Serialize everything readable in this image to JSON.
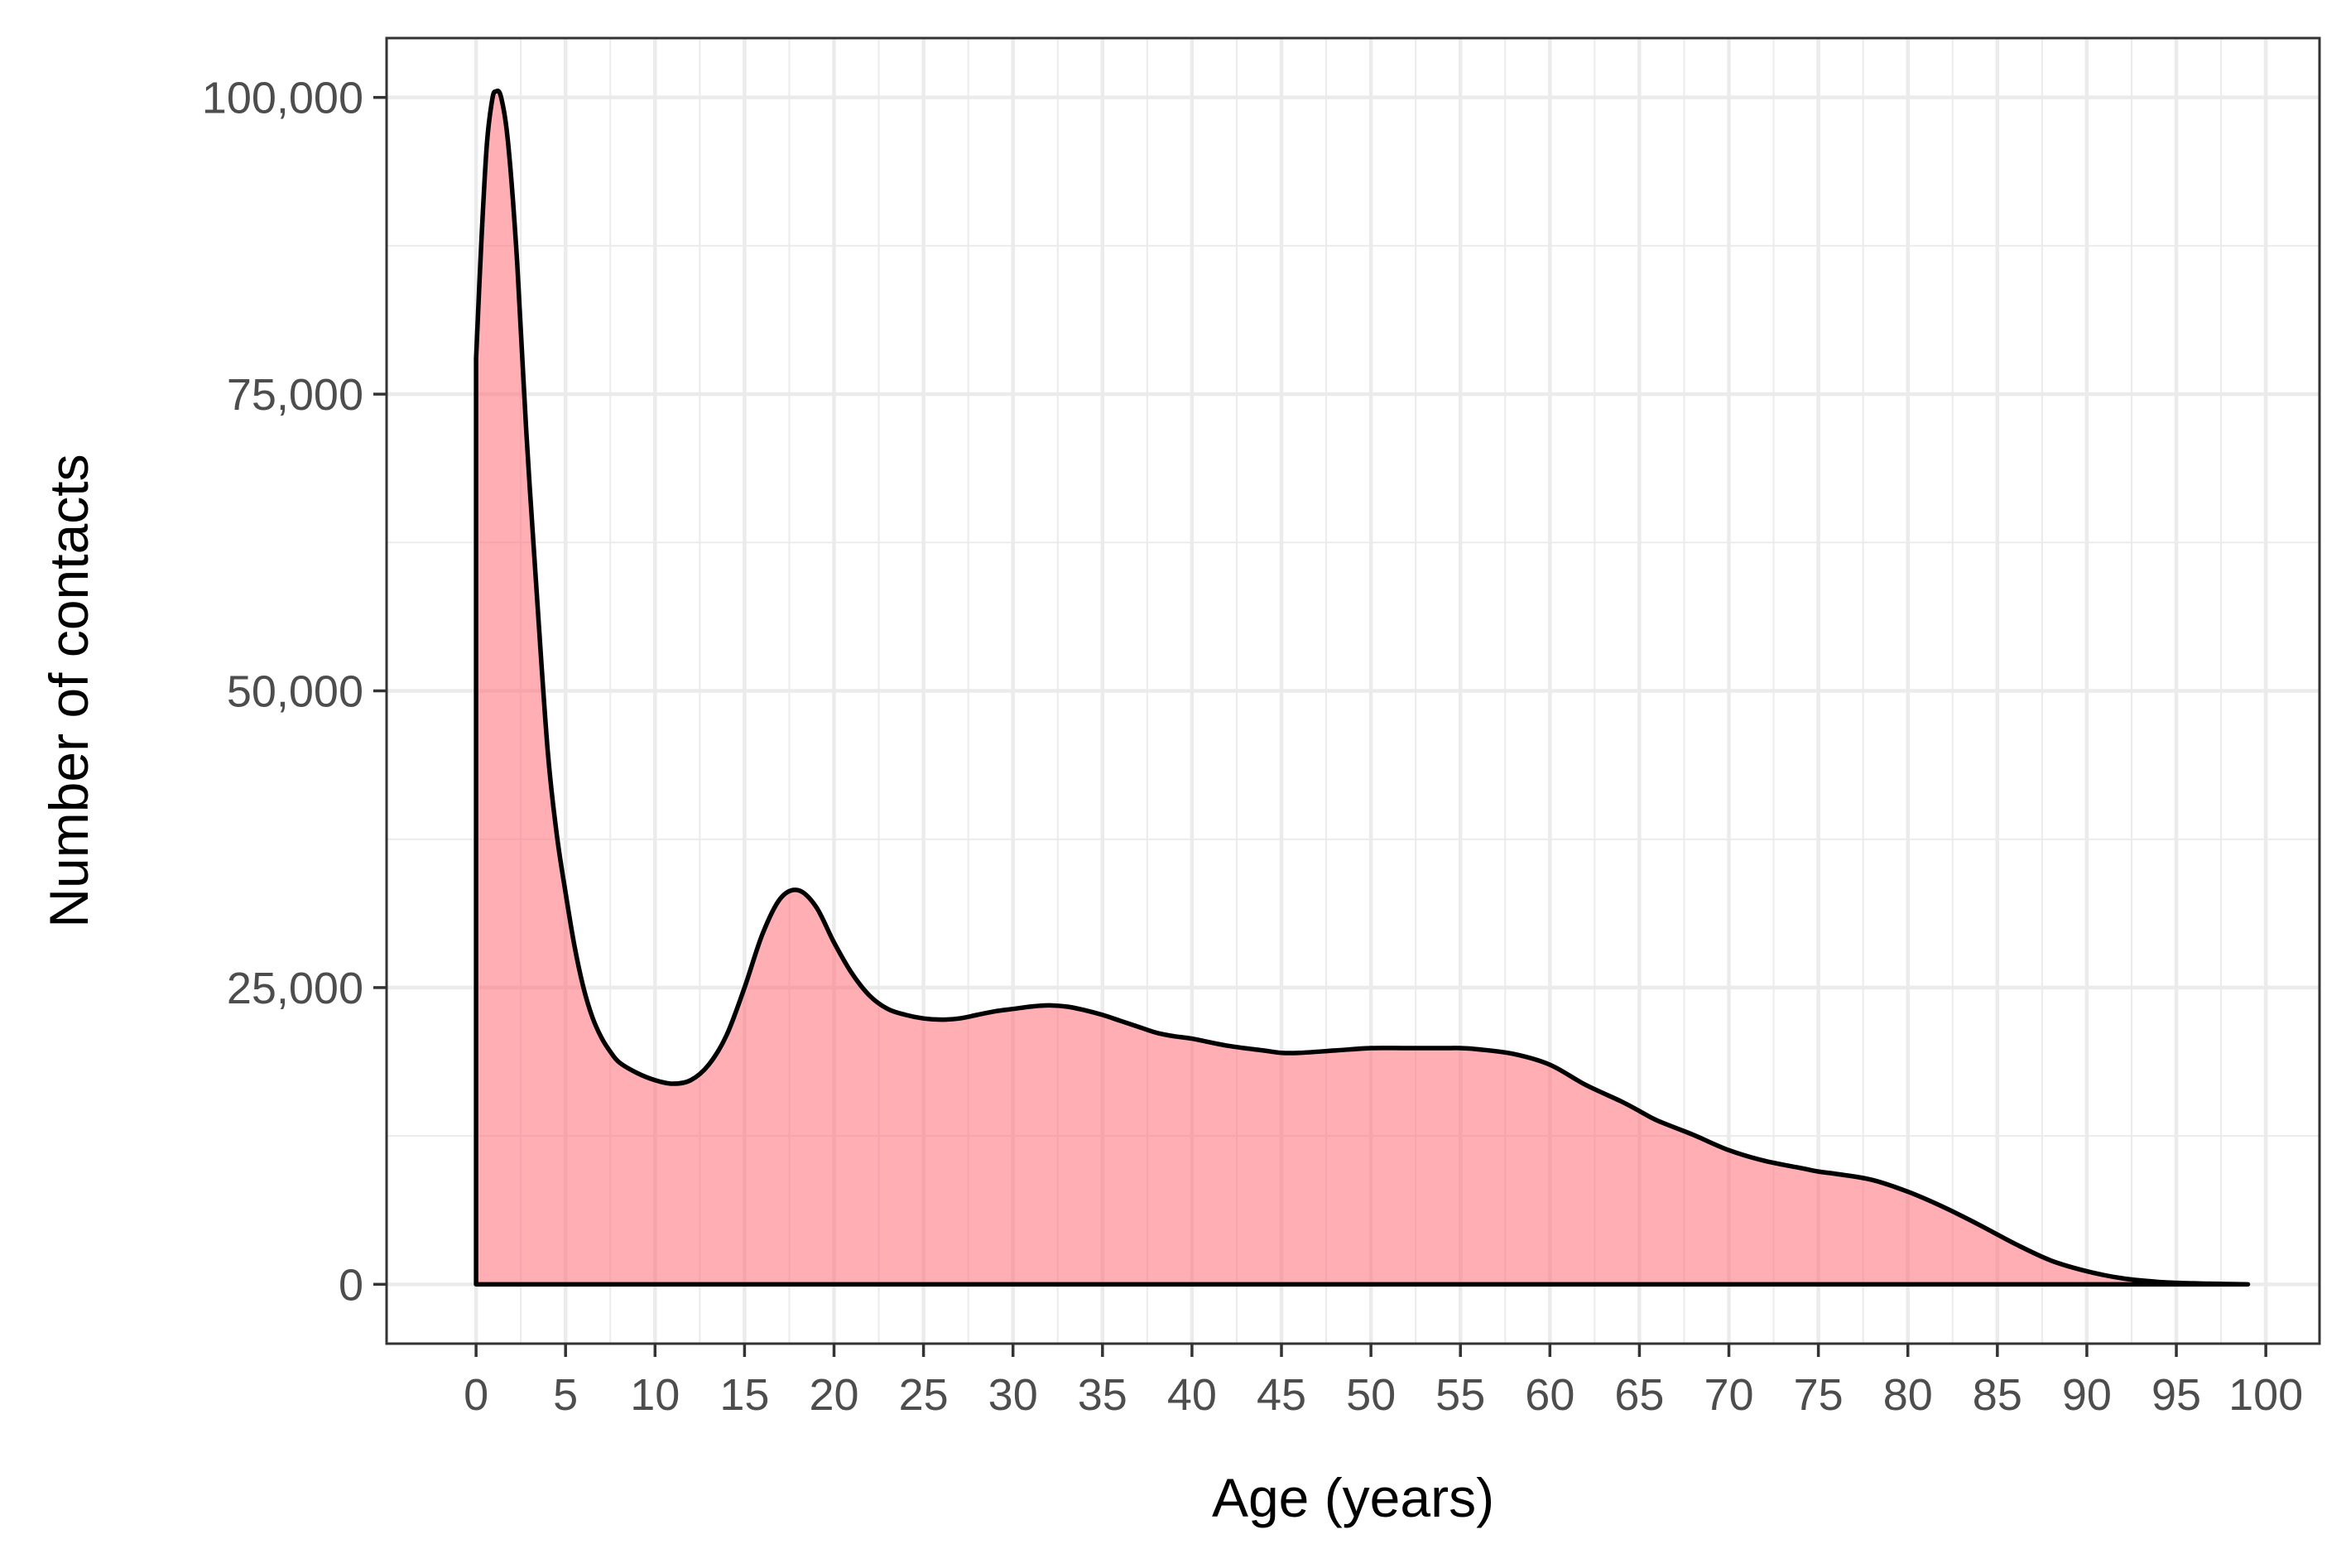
{
  "chart_data": {
    "type": "area",
    "title": "",
    "xlabel": "Age (years)",
    "ylabel": "Number of contacts",
    "xlim": [
      -5,
      103
    ],
    "ylim": [
      -5000,
      105000
    ],
    "x_ticks": [
      0,
      5,
      10,
      15,
      20,
      25,
      30,
      35,
      40,
      45,
      50,
      55,
      60,
      65,
      70,
      75,
      80,
      85,
      90,
      95,
      100
    ],
    "x_tick_labels": [
      "0",
      "5",
      "10",
      "15",
      "20",
      "25",
      "30",
      "35",
      "40",
      "45",
      "50",
      "55",
      "60",
      "65",
      "70",
      "75",
      "80",
      "85",
      "90",
      "95",
      "100"
    ],
    "y_ticks": [
      0,
      25000,
      50000,
      75000,
      100000
    ],
    "y_tick_labels": [
      "0",
      "25,000",
      "50,000",
      "75,000",
      "100,000"
    ],
    "grid": true,
    "legend": "none",
    "colors": {
      "fill": "#FF6E75",
      "fill_opacity": 0.55,
      "line": "#000000",
      "grid": "#EBEBEB",
      "panel_border": "#333333",
      "tick_label": "#4D4D4D",
      "axis_title": "#000000"
    },
    "series": [
      {
        "x": [
          0,
          0.3,
          0.6,
          0.9,
          1.1,
          1.4,
          1.8,
          2.3,
          2.8,
          3.4,
          4,
          4.5,
          5,
          5.5,
          6,
          6.5,
          7,
          7.5,
          8,
          9,
          10,
          11,
          12,
          13,
          14,
          15,
          16,
          17,
          18,
          19,
          20,
          21,
          22,
          23,
          24,
          25,
          26,
          27,
          28,
          29,
          30,
          31,
          32,
          33,
          34,
          35,
          36,
          37,
          38,
          39,
          40,
          42,
          44,
          45,
          46,
          48,
          50,
          52,
          54,
          55,
          56,
          58,
          60,
          62,
          64,
          65,
          66,
          68,
          70,
          72,
          74,
          75,
          76,
          78,
          80,
          82,
          84,
          86,
          88,
          90,
          92,
          94,
          96,
          98,
          99
        ],
        "y": [
          78000,
          88000,
          96000,
          99800,
          100500,
          100000,
          96000,
          86000,
          72000,
          58000,
          45000,
          38000,
          33000,
          28500,
          25000,
          22500,
          20800,
          19600,
          18700,
          17800,
          17200,
          16900,
          17200,
          18500,
          21000,
          25000,
          29500,
          32500,
          33200,
          31800,
          28800,
          26200,
          24300,
          23200,
          22700,
          22400,
          22300,
          22400,
          22700,
          23000,
          23200,
          23400,
          23500,
          23400,
          23100,
          22700,
          22200,
          21700,
          21200,
          20900,
          20700,
          20100,
          19700,
          19500,
          19500,
          19700,
          19900,
          19900,
          19900,
          19900,
          19800,
          19400,
          18500,
          16800,
          15400,
          14600,
          13800,
          12600,
          11300,
          10400,
          9800,
          9500,
          9300,
          8800,
          7800,
          6500,
          5000,
          3400,
          2000,
          1100,
          500,
          200,
          80,
          20,
          0
        ]
      }
    ]
  }
}
